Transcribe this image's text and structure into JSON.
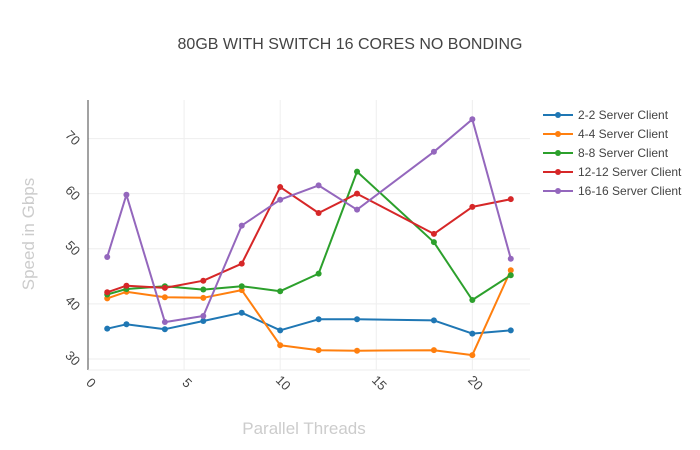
{
  "chart_data": {
    "type": "line",
    "title": "80GB WITH SWITCH 16 CORES NO BONDING",
    "xlabel": "Parallel Threads",
    "ylabel": "Speed in Gbps",
    "xlim": [
      0,
      23
    ],
    "ylim": [
      28,
      77
    ],
    "xticks": [
      0,
      5,
      10,
      15,
      20
    ],
    "yticks": [
      30,
      40,
      50,
      60,
      70
    ],
    "grid": true,
    "legend_position": "top-right",
    "x": [
      1,
      2,
      4,
      6,
      8,
      10,
      12,
      14,
      18,
      20,
      22
    ],
    "series": [
      {
        "name": "2-2 Server Client",
        "color": "#1f77b4",
        "values": [
          35.5,
          36.3,
          35.4,
          36.9,
          38.4,
          35.2,
          37.2,
          37.2,
          37.0,
          34.6,
          35.2
        ]
      },
      {
        "name": "4-4 Server Client",
        "color": "#ff7f0e",
        "values": [
          41.0,
          42.2,
          41.2,
          41.1,
          42.5,
          32.5,
          31.6,
          31.5,
          31.6,
          30.7,
          46.1
        ]
      },
      {
        "name": "8-8 Server Client",
        "color": "#2ca02c",
        "values": [
          41.7,
          42.7,
          43.2,
          42.6,
          43.2,
          42.3,
          45.5,
          64.0,
          51.2,
          40.7,
          45.2
        ]
      },
      {
        "name": "12-12 Server Client",
        "color": "#d62728",
        "values": [
          42.1,
          43.3,
          42.9,
          44.2,
          47.3,
          61.2,
          56.5,
          60.0,
          52.7,
          57.6,
          59.0
        ]
      },
      {
        "name": "16-16 Server Client",
        "color": "#9467bd",
        "values": [
          48.5,
          59.8,
          36.7,
          37.8,
          54.2,
          58.9,
          61.5,
          57.1,
          67.6,
          73.5,
          48.2
        ]
      }
    ]
  }
}
